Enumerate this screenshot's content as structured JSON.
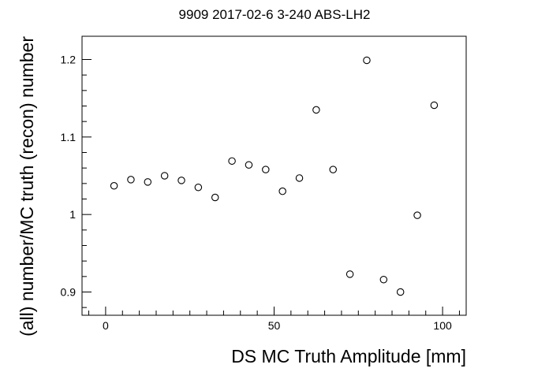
{
  "chart_data": {
    "type": "scatter",
    "title": "9909 2017-02-6 3-240 ABS-LH2",
    "xlabel": "DS MC Truth Amplitude [mm]",
    "ylabel": "(all) number/MC truth (recon) number",
    "xlim": [
      -7,
      107
    ],
    "ylim": [
      0.87,
      1.23
    ],
    "x_ticks": [
      0,
      50,
      100
    ],
    "x_tick_labels": [
      "0",
      "50",
      "100"
    ],
    "y_ticks": [
      0.9,
      1.0,
      1.1,
      1.2
    ],
    "y_tick_labels": [
      "0.9",
      "1",
      "1.1",
      "1.2"
    ],
    "marker": "open-circle",
    "grid": false,
    "legend": "none",
    "points": [
      {
        "x": 2.5,
        "y": 1.037
      },
      {
        "x": 7.5,
        "y": 1.045
      },
      {
        "x": 12.5,
        "y": 1.042
      },
      {
        "x": 17.5,
        "y": 1.05
      },
      {
        "x": 22.5,
        "y": 1.044
      },
      {
        "x": 27.5,
        "y": 1.035
      },
      {
        "x": 32.5,
        "y": 1.022
      },
      {
        "x": 37.5,
        "y": 1.069
      },
      {
        "x": 42.5,
        "y": 1.064
      },
      {
        "x": 47.5,
        "y": 1.058
      },
      {
        "x": 52.5,
        "y": 1.03
      },
      {
        "x": 57.5,
        "y": 1.047
      },
      {
        "x": 62.5,
        "y": 1.135
      },
      {
        "x": 67.5,
        "y": 1.058
      },
      {
        "x": 72.5,
        "y": 0.923
      },
      {
        "x": 77.5,
        "y": 1.199
      },
      {
        "x": 82.5,
        "y": 0.916
      },
      {
        "x": 87.5,
        "y": 0.9
      },
      {
        "x": 92.5,
        "y": 0.999
      },
      {
        "x": 97.5,
        "y": 1.141
      }
    ]
  }
}
